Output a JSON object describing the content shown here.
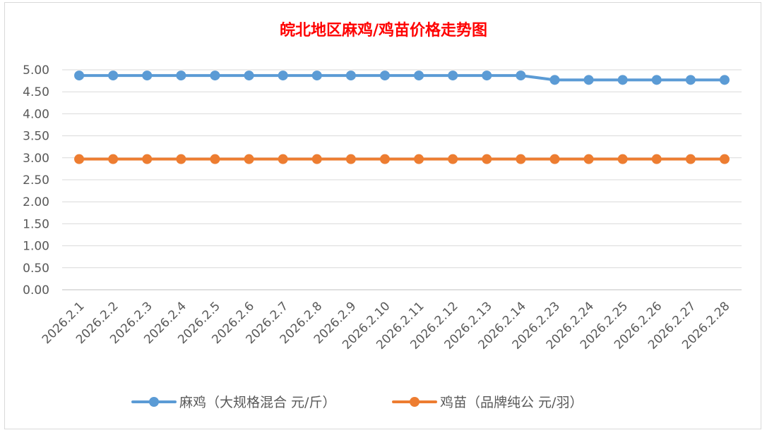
{
  "chart_data": {
    "type": "line",
    "title": "皖北地区麻鸡/鸡苗价格走势图",
    "categories": [
      "2026.2.1",
      "2026.2.2",
      "2026.2.3",
      "2026.2.4",
      "2026.2.5",
      "2026.2.6",
      "2026.2.7",
      "2026.2.8",
      "2026.2.9",
      "2026.2.10",
      "2026.2.11",
      "2026.2.12",
      "2026.2.13",
      "2026.2.14",
      "2026.2.23",
      "2026.2.24",
      "2026.2.25",
      "2026.2.26",
      "2026.2.27",
      "2026.2.28"
    ],
    "series": [
      {
        "name": "麻鸡（大规格混合 元/斤）",
        "color": "#5b9bd5",
        "values": [
          4.87,
          4.87,
          4.87,
          4.87,
          4.87,
          4.87,
          4.87,
          4.87,
          4.87,
          4.87,
          4.87,
          4.87,
          4.87,
          4.87,
          4.77,
          4.77,
          4.77,
          4.77,
          4.77,
          4.77
        ]
      },
      {
        "name": "鸡苗（品牌纯公 元/羽）",
        "color": "#ed7d31",
        "values": [
          2.97,
          2.97,
          2.97,
          2.97,
          2.97,
          2.97,
          2.97,
          2.97,
          2.97,
          2.97,
          2.97,
          2.97,
          2.97,
          2.97,
          2.97,
          2.97,
          2.97,
          2.97,
          2.97,
          2.97
        ]
      }
    ],
    "ylim": [
      0,
      5
    ],
    "yticks": [
      "0.00",
      "0.50",
      "1.00",
      "1.50",
      "2.00",
      "2.50",
      "3.00",
      "3.50",
      "4.00",
      "4.50",
      "5.00"
    ],
    "xlabel": "",
    "ylabel": "",
    "grid": true,
    "legend_position": "bottom",
    "title_color": "#ff0000"
  }
}
